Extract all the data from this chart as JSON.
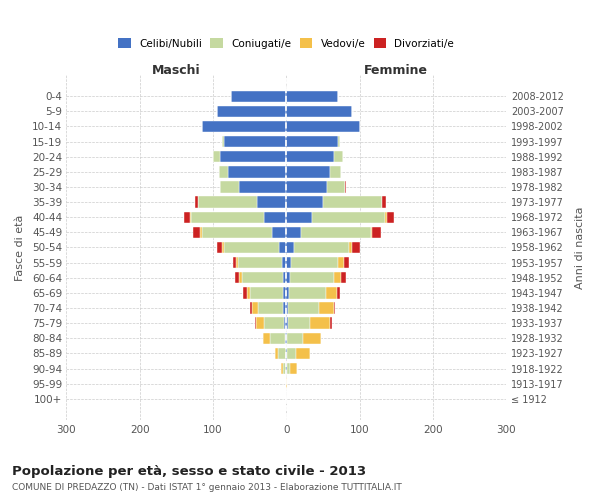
{
  "age_groups": [
    "100+",
    "95-99",
    "90-94",
    "85-89",
    "80-84",
    "75-79",
    "70-74",
    "65-69",
    "60-64",
    "55-59",
    "50-54",
    "45-49",
    "40-44",
    "35-39",
    "30-34",
    "25-29",
    "20-24",
    "15-19",
    "10-14",
    "5-9",
    "0-4"
  ],
  "birth_years": [
    "≤ 1912",
    "1913-1917",
    "1918-1922",
    "1923-1927",
    "1928-1932",
    "1933-1937",
    "1938-1942",
    "1943-1947",
    "1948-1952",
    "1953-1957",
    "1958-1962",
    "1963-1967",
    "1968-1972",
    "1973-1977",
    "1978-1982",
    "1983-1987",
    "1988-1992",
    "1993-1997",
    "1998-2002",
    "2003-2007",
    "2008-2012"
  ],
  "colors": {
    "celibi": "#4472c4",
    "coniugati": "#c5d9a0",
    "vedovi": "#f4c04a",
    "divorziati": "#cc2222"
  },
  "maschi": {
    "celibi": [
      0,
      0,
      1,
      1,
      2,
      3,
      4,
      4,
      5,
      6,
      10,
      20,
      30,
      40,
      65,
      80,
      90,
      85,
      115,
      95,
      75
    ],
    "coniugati": [
      0,
      0,
      4,
      10,
      20,
      28,
      35,
      45,
      55,
      60,
      75,
      95,
      100,
      80,
      25,
      12,
      10,
      2,
      0,
      0,
      0
    ],
    "vedovi": [
      0,
      0,
      2,
      5,
      10,
      10,
      8,
      5,
      4,
      2,
      2,
      2,
      1,
      0,
      0,
      0,
      0,
      0,
      0,
      0,
      0
    ],
    "divorziati": [
      0,
      0,
      0,
      0,
      0,
      1,
      2,
      5,
      6,
      5,
      8,
      10,
      8,
      5,
      1,
      0,
      0,
      0,
      0,
      0,
      0
    ]
  },
  "femmine": {
    "celibi": [
      0,
      0,
      1,
      1,
      1,
      2,
      3,
      4,
      5,
      6,
      10,
      20,
      35,
      50,
      55,
      60,
      65,
      70,
      100,
      90,
      70
    ],
    "coniugati": [
      0,
      0,
      4,
      12,
      22,
      30,
      42,
      50,
      60,
      65,
      75,
      95,
      100,
      80,
      25,
      15,
      12,
      3,
      0,
      0,
      0
    ],
    "vedovi": [
      0,
      1,
      10,
      20,
      25,
      28,
      20,
      15,
      10,
      8,
      5,
      2,
      2,
      1,
      0,
      0,
      0,
      0,
      0,
      0,
      0
    ],
    "divorziati": [
      0,
      0,
      0,
      0,
      0,
      2,
      2,
      5,
      7,
      6,
      10,
      12,
      10,
      5,
      2,
      0,
      0,
      0,
      0,
      0,
      0
    ]
  },
  "title": "Popolazione per età, sesso e stato civile - 2013",
  "subtitle": "COMUNE DI PREDAZZO (TN) - Dati ISTAT 1° gennaio 2013 - Elaborazione TUTTITALIA.IT",
  "xlabel_maschi": "Maschi",
  "xlabel_femmine": "Femmine",
  "ylabel_left": "Fasce di età",
  "ylabel_right": "Anni di nascita",
  "xlim": 300,
  "background_color": "#ffffff",
  "grid_color": "#cccccc"
}
